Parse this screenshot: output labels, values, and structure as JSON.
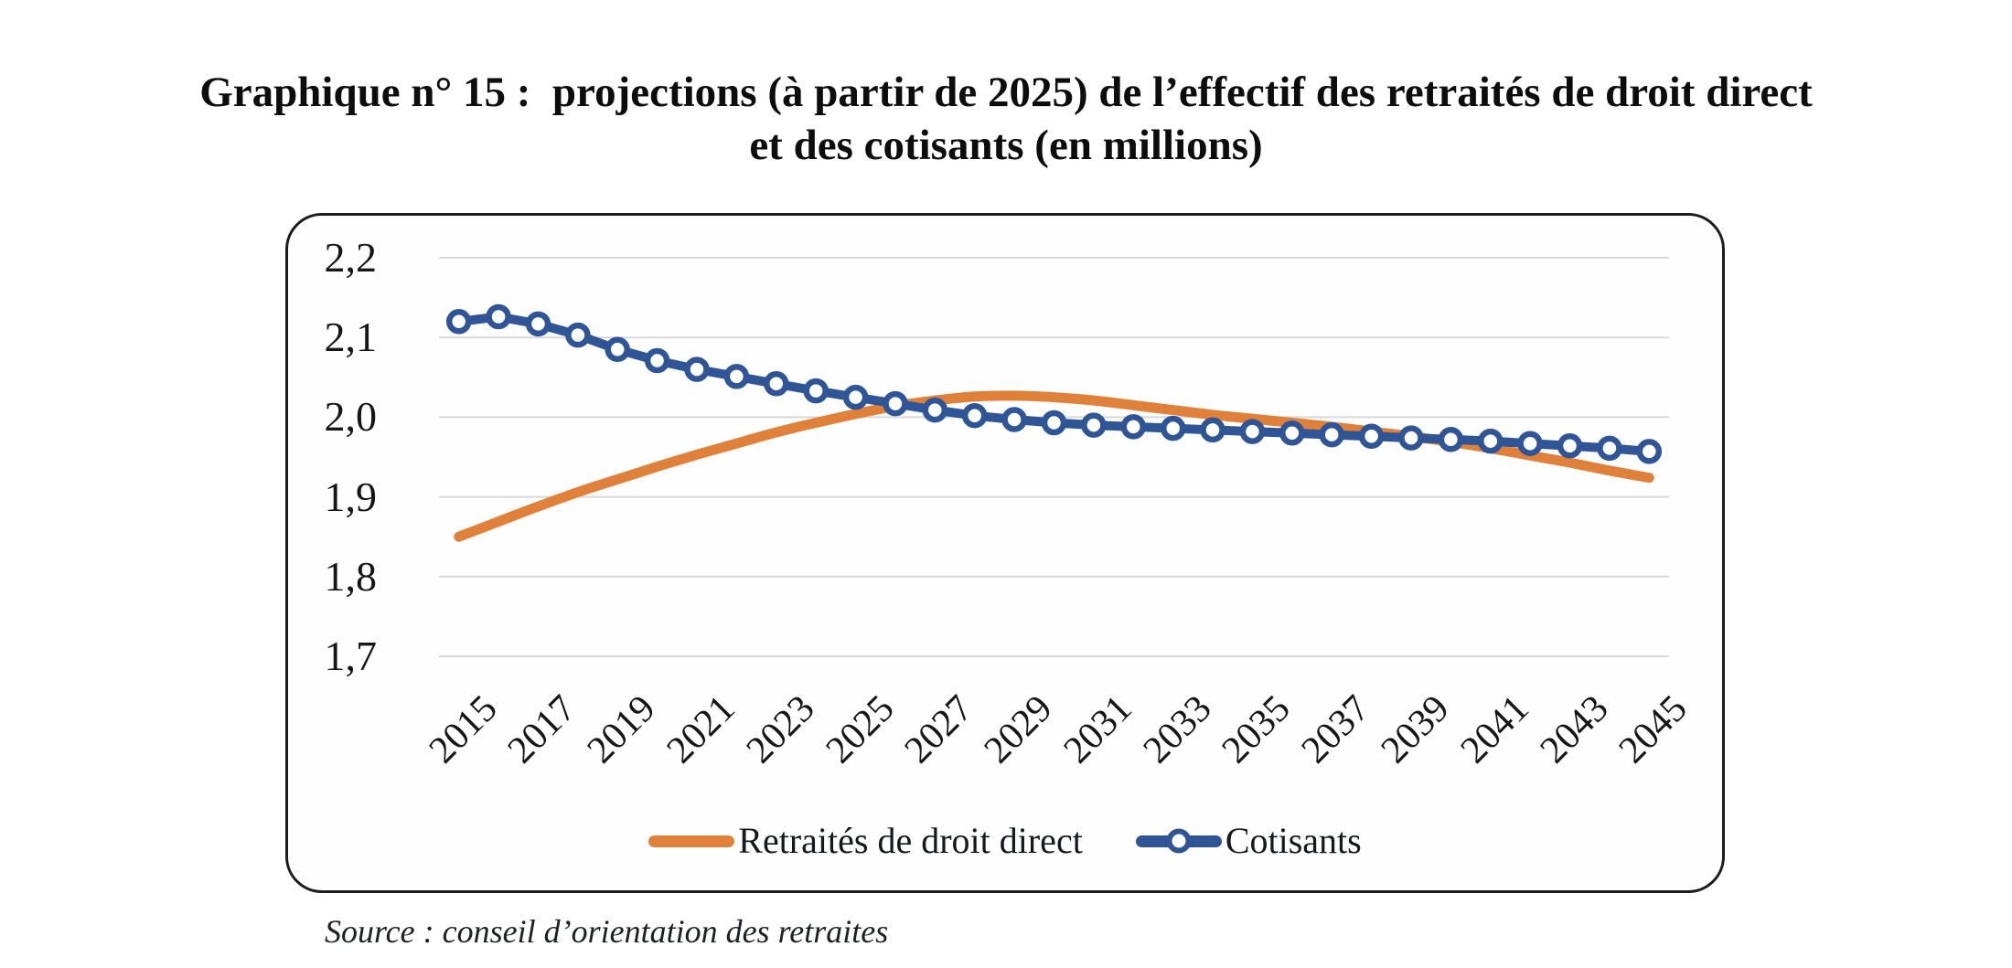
{
  "figure": {
    "title_lines": [
      "Graphique n° 15 :  projections (à partir de 2025) de l’effectif des retraités de droit direct",
      "et des cotisants (en millions)"
    ],
    "source_note": "Source : conseil d’orientation des retraites"
  },
  "chart_data": {
    "type": "line",
    "title": "Graphique n° 15 : projections (à partir de 2025) de l’effectif des retraités de droit direct et des cotisants (en millions)",
    "xlabel": "",
    "ylabel": "",
    "x": [
      2015,
      2016,
      2017,
      2018,
      2019,
      2020,
      2021,
      2022,
      2023,
      2024,
      2025,
      2026,
      2027,
      2028,
      2029,
      2030,
      2031,
      2032,
      2033,
      2034,
      2035,
      2036,
      2037,
      2038,
      2039,
      2040,
      2041,
      2042,
      2043,
      2044,
      2045
    ],
    "x_tick_labels": [
      "2015",
      "2017",
      "2019",
      "2021",
      "2023",
      "2025",
      "2027",
      "2029",
      "2031",
      "2033",
      "2035",
      "2037",
      "2039",
      "2041",
      "2043",
      "2045"
    ],
    "y_tick_values": [
      2.2,
      2.1,
      2.0,
      1.9,
      1.8,
      1.7
    ],
    "y_tick_labels": [
      "2,2",
      "2,1",
      "2,0",
      "1,9",
      "1,8",
      "1,7"
    ],
    "ylim": [
      1.7,
      2.2
    ],
    "grid": "horizontal",
    "gridline_color": "#D9D9D9",
    "legend_position": "bottom-inside",
    "series": [
      {
        "name": "Retraités de droit direct",
        "color": "#E0813B",
        "marker": "none",
        "smooth": true,
        "values": [
          1.85,
          1.869,
          1.888,
          1.906,
          1.922,
          1.938,
          1.953,
          1.967,
          1.981,
          1.993,
          2.004,
          2.014,
          2.021,
          2.026,
          2.027,
          2.025,
          2.021,
          2.015,
          2.009,
          2.003,
          1.998,
          1.993,
          1.988,
          1.982,
          1.976,
          1.969,
          1.961,
          1.952,
          1.943,
          1.933,
          1.924
        ]
      },
      {
        "name": "Cotisants",
        "color": "#2F5597",
        "marker": "circle-open",
        "smooth": false,
        "values": [
          2.12,
          2.126,
          2.117,
          2.103,
          2.085,
          2.071,
          2.06,
          2.051,
          2.042,
          2.033,
          2.025,
          2.017,
          2.009,
          2.002,
          1.997,
          1.993,
          1.99,
          1.988,
          1.986,
          1.984,
          1.982,
          1.98,
          1.978,
          1.976,
          1.974,
          1.972,
          1.97,
          1.967,
          1.964,
          1.961,
          1.957
        ]
      }
    ]
  },
  "colors": {
    "frame_border": "#1C1C1C",
    "text": "#141414"
  }
}
